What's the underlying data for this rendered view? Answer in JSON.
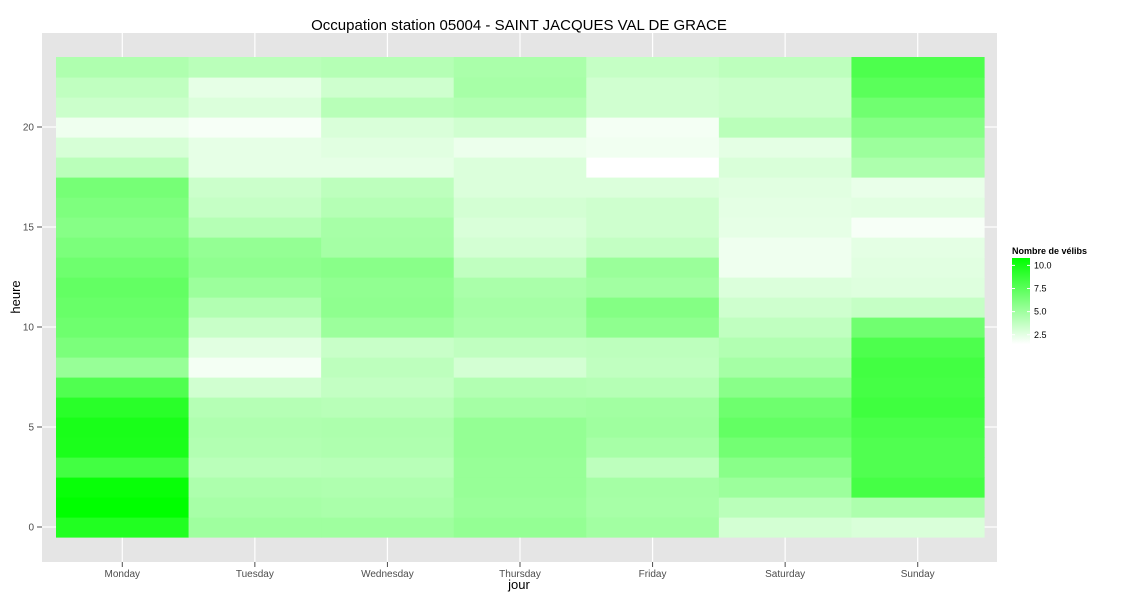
{
  "chart_data": {
    "type": "heatmap",
    "title": "Occupation station 05004 - SAINT JACQUES VAL DE GRACE",
    "xlabel": "jour",
    "ylabel": "heure",
    "categories": [
      "Monday",
      "Tuesday",
      "Wednesday",
      "Thursday",
      "Friday",
      "Saturday",
      "Sunday"
    ],
    "hours": [
      0,
      1,
      2,
      3,
      4,
      5,
      6,
      7,
      8,
      9,
      10,
      11,
      12,
      13,
      14,
      15,
      16,
      17,
      18,
      19,
      20,
      21,
      22,
      23
    ],
    "y_ticks": [
      0,
      5,
      10,
      15,
      20
    ],
    "ylim": [
      -0.5,
      23.5
    ],
    "grid": true,
    "colors": {
      "low": "#ffffff",
      "high": "#00ff00",
      "panel": "#e5e5e5",
      "grid": "#ffffff"
    },
    "scale_limits": [
      1.5,
      10.8
    ],
    "values": [
      [
        9.6,
        5.0,
        5.0,
        5.4,
        4.9,
        3.1,
        2.9
      ],
      [
        10.8,
        4.7,
        4.6,
        5.2,
        4.7,
        4.0,
        4.5
      ],
      [
        10.5,
        4.5,
        4.4,
        5.3,
        4.8,
        5.1,
        8.3
      ],
      [
        8.4,
        4.0,
        4.1,
        5.3,
        3.9,
        5.8,
        7.9
      ],
      [
        9.8,
        4.3,
        4.4,
        5.4,
        4.7,
        6.6,
        7.9
      ],
      [
        9.9,
        4.4,
        4.5,
        5.4,
        5.0,
        7.2,
        8.1
      ],
      [
        9.3,
        4.2,
        4.1,
        4.8,
        4.9,
        6.8,
        8.5
      ],
      [
        7.9,
        3.2,
        3.7,
        4.3,
        4.2,
        5.8,
        8.3
      ],
      [
        5.3,
        1.9,
        3.9,
        3.1,
        3.8,
        4.8,
        8.4
      ],
      [
        6.3,
        2.6,
        3.5,
        3.8,
        3.9,
        4.3,
        8.0
      ],
      [
        6.8,
        3.5,
        5.1,
        4.6,
        5.6,
        3.8,
        6.7
      ],
      [
        7.0,
        4.3,
        5.6,
        4.8,
        6.0,
        3.3,
        3.6
      ],
      [
        7.2,
        5.1,
        5.5,
        4.6,
        4.9,
        2.8,
        2.7
      ],
      [
        6.8,
        5.6,
        5.8,
        3.8,
        5.2,
        2.1,
        2.6
      ],
      [
        6.3,
        5.4,
        4.8,
        3.1,
        3.7,
        2.1,
        2.5
      ],
      [
        5.9,
        4.2,
        4.7,
        2.9,
        3.3,
        2.4,
        1.8
      ],
      [
        6.2,
        3.6,
        4.2,
        3.1,
        3.3,
        2.5,
        2.6
      ],
      [
        6.5,
        3.4,
        3.9,
        2.8,
        2.8,
        2.6,
        2.3
      ],
      [
        4.0,
        2.4,
        2.4,
        2.8,
        1.5,
        2.9,
        4.5
      ],
      [
        3.0,
        2.4,
        2.6,
        2.2,
        2.0,
        2.5,
        5.1
      ],
      [
        2.1,
        1.8,
        2.9,
        3.2,
        1.9,
        4.0,
        5.9
      ],
      [
        3.4,
        2.8,
        4.1,
        4.3,
        3.2,
        3.4,
        6.7
      ],
      [
        3.8,
        2.4,
        3.3,
        4.7,
        3.2,
        3.4,
        7.5
      ],
      [
        4.4,
        4.0,
        4.2,
        4.6,
        3.6,
        3.9,
        8.0
      ]
    ],
    "legend": {
      "title": "Nombre de vélibs",
      "ticks": [
        "10.0",
        "7.5",
        "5.0",
        "2.5"
      ],
      "tick_values": [
        10.0,
        7.5,
        5.0,
        2.5
      ],
      "placement": "right"
    }
  }
}
